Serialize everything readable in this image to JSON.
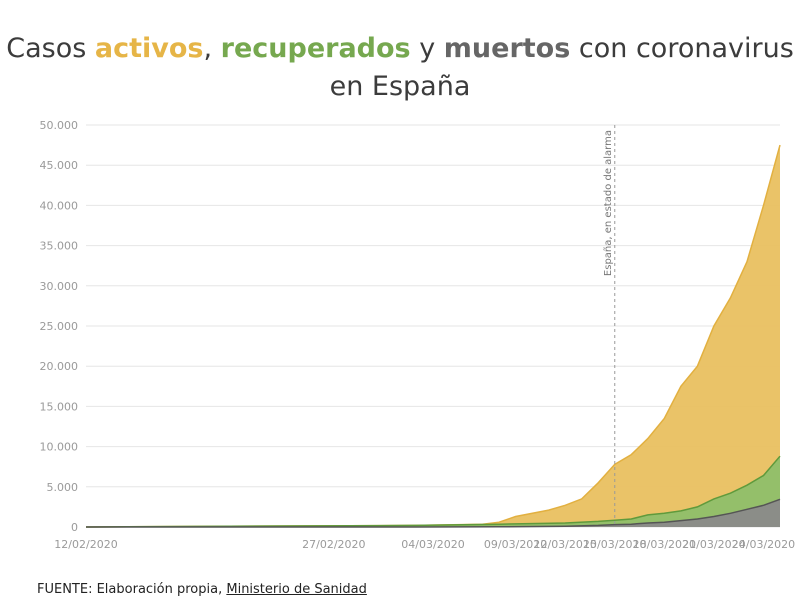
{
  "title": {
    "prefix": "Casos ",
    "w1": "activos",
    "sep1": ", ",
    "w2": "recuperados",
    "sep2": " y ",
    "w3": "muertos",
    "suffix": " con coronavirus en España"
  },
  "source": {
    "label": "FUENTE: Elaboración propia, ",
    "link": "Ministerio de Sanidad"
  },
  "colors": {
    "active": "#e9c060",
    "active_line": "#e2b040",
    "recovered": "#8fbf6a",
    "recovered_line": "#5f9a3c",
    "dead": "#8a8a8a",
    "dead_line": "#555555",
    "grid": "#e6e6e6"
  },
  "chart_data": {
    "type": "area",
    "stacked": true,
    "title": "Casos activos, recuperados y muertos con coronavirus en España",
    "ylim": [
      0,
      50000
    ],
    "x_start": "12/02/2020",
    "x_end": "25/03/2020",
    "x_tick_labels": [
      "12/02/2020",
      "27/02/2020",
      "04/03/2020",
      "09/03/2020",
      "12/03/2020",
      "15/03/2020",
      "18/03/2020",
      "21/03/2020",
      "24/03/2020"
    ],
    "x_tick_days": [
      0,
      15,
      21,
      26,
      29,
      32,
      35,
      38,
      41
    ],
    "y_tick_labels": [
      "0",
      "5.000",
      "10.000",
      "15.000",
      "20.000",
      "25.000",
      "30.000",
      "35.000",
      "40.000",
      "45.000",
      "50.000"
    ],
    "y_tick_values": [
      0,
      5000,
      10000,
      15000,
      20000,
      25000,
      30000,
      35000,
      40000,
      45000,
      50000
    ],
    "annotation": {
      "label": "España, en estado de alarma",
      "day": 32
    },
    "series": [
      {
        "name": "muertos",
        "days": [
          0,
          20,
          25,
          29,
          31,
          32,
          33,
          34,
          35,
          36,
          37,
          38,
          39,
          40,
          41,
          42
        ],
        "values": [
          0,
          5,
          20,
          100,
          200,
          300,
          350,
          500,
          600,
          800,
          1000,
          1300,
          1700,
          2200,
          2700,
          3450
        ]
      },
      {
        "name": "recuperados",
        "days": [
          0,
          20,
          25,
          29,
          31,
          32,
          33,
          34,
          35,
          36,
          37,
          38,
          39,
          40,
          41,
          42
        ],
        "values": [
          0,
          200,
          350,
          500,
          700,
          850,
          1000,
          1500,
          1700,
          2000,
          2500,
          3500,
          4200,
          5200,
          6400,
          8800
        ]
      },
      {
        "name": "activos",
        "days": [
          0,
          20,
          24,
          25,
          26,
          28,
          29,
          30,
          31,
          32,
          33,
          34,
          35,
          36,
          37,
          38,
          39,
          40,
          41,
          42
        ],
        "values": [
          0,
          200,
          350,
          600,
          1300,
          2100,
          2700,
          3500,
          5500,
          7800,
          9000,
          11000,
          13500,
          17500,
          20000,
          25000,
          28500,
          33000,
          40000,
          47500
        ]
      }
    ]
  }
}
